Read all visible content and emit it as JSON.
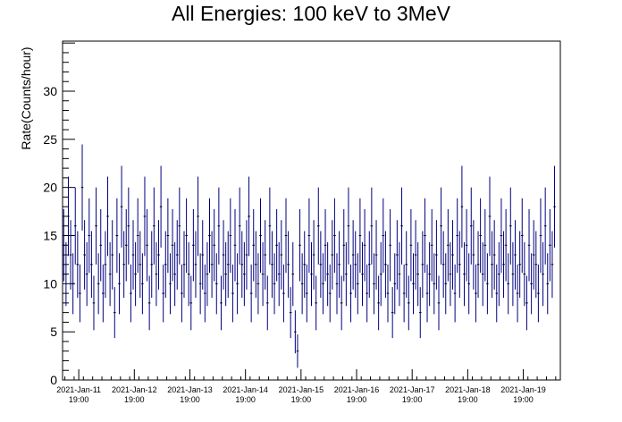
{
  "chart_data": {
    "type": "scatter",
    "title": "All Energies:  100 keV to 3MeV",
    "xlabel": "",
    "ylabel": "Rate(Counts/hour)",
    "ylim": [
      0,
      35.2
    ],
    "xlim": [
      0,
      215
    ],
    "y_ticks": [
      0,
      5,
      10,
      15,
      20,
      25,
      30
    ],
    "x_ticks": [
      {
        "value": 7,
        "label": "2021-Jan-11",
        "label2": "19:00"
      },
      {
        "value": 31,
        "label": "2021-Jan-12",
        "label2": "19:00"
      },
      {
        "value": 55,
        "label": "2021-Jan-13",
        "label2": "19:00"
      },
      {
        "value": 79,
        "label": "2021-Jan-14",
        "label2": "19:00"
      },
      {
        "value": 103,
        "label": "2021-Jan-15",
        "label2": "19:00"
      },
      {
        "value": 127,
        "label": "2021-Jan-16",
        "label2": "19:00"
      },
      {
        "value": 151,
        "label": "2021-Jan-17",
        "label2": "19:00"
      },
      {
        "value": 175,
        "label": "2021-Jan-18",
        "label2": "19:00"
      },
      {
        "value": 199,
        "label": "2021-Jan-19",
        "label2": "19:00"
      }
    ],
    "grid": false,
    "legend": "none",
    "error_bars": "sqrt(N)",
    "color": "#000080",
    "series": [
      {
        "values": [
          14,
          11,
          17,
          13,
          10,
          16,
          12,
          9,
          20,
          13,
          11,
          15,
          12,
          8,
          16,
          10,
          14,
          9,
          12,
          17,
          11,
          13,
          7,
          15,
          10,
          18,
          12,
          14,
          16,
          9,
          13,
          11,
          15,
          12,
          10,
          17,
          14,
          8,
          12,
          16,
          11,
          13,
          18,
          9,
          12,
          15,
          10,
          14,
          11,
          13,
          16,
          9,
          12,
          15,
          11,
          8,
          14,
          12,
          17,
          10,
          13,
          9,
          11,
          15,
          12,
          14,
          10,
          16,
          8,
          13,
          11,
          12,
          15,
          9,
          14,
          10,
          16,
          12,
          11,
          13,
          17,
          9,
          14,
          12,
          10,
          15,
          11,
          13,
          8,
          16,
          12,
          10,
          14,
          11,
          13,
          9,
          15,
          12,
          7,
          11,
          5,
          3,
          14,
          10,
          12,
          9,
          15,
          11,
          13,
          8,
          16,
          12,
          10,
          14,
          11,
          9,
          13,
          15,
          10,
          12,
          8,
          14,
          11,
          16,
          9,
          13,
          12,
          10,
          15,
          11,
          14,
          9,
          12,
          16,
          10,
          13,
          8,
          11,
          15,
          12,
          9,
          14,
          7,
          10,
          13,
          11,
          16,
          9,
          12,
          8,
          14,
          10,
          13,
          11,
          7,
          12,
          15,
          9,
          11,
          14,
          10,
          13,
          8,
          16,
          12,
          10,
          14,
          11,
          13,
          9,
          15,
          12,
          18,
          11,
          14,
          10,
          16,
          13,
          9,
          12,
          15,
          11,
          14,
          10,
          17,
          12,
          13,
          9,
          11,
          15,
          12,
          14,
          10,
          16,
          11,
          13,
          9,
          12,
          15,
          11,
          8,
          14,
          10,
          13,
          12,
          9,
          15,
          11,
          16,
          10,
          14,
          12,
          18
        ]
      }
    ]
  }
}
